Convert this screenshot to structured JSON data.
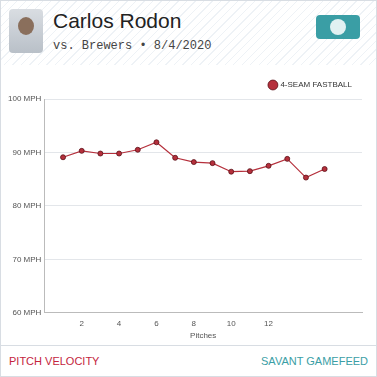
{
  "header": {
    "title": "Carlos Rodon",
    "subtitle": "vs. Brewers • 8/4/2020"
  },
  "chart_data": {
    "type": "line",
    "x": [
      1,
      2,
      3,
      4,
      5,
      6,
      7,
      8,
      9,
      10,
      11,
      12,
      13,
      14,
      15
    ],
    "series": [
      {
        "name": "4-SEAM FASTBALL",
        "color": "#b5303c",
        "marker": "circle",
        "line_style": "solid",
        "values": [
          89.1,
          90.3,
          89.8,
          89.8,
          90.5,
          91.9,
          89.0,
          88.2,
          88.0,
          86.4,
          86.5,
          87.5,
          88.8,
          85.3,
          86.9
        ]
      }
    ],
    "x_label": "Pitches",
    "xlim": [
      0,
      17
    ],
    "xticks": [
      2,
      4,
      6,
      8,
      10,
      12
    ],
    "ylim": [
      60,
      100
    ],
    "yticks": [
      {
        "value": 60,
        "label": "60 MPH"
      },
      {
        "value": 70,
        "label": "70 MPH"
      },
      {
        "value": 80,
        "label": "80 MPH"
      },
      {
        "value": 90,
        "label": "90 MPH"
      },
      {
        "value": 100,
        "label": "100 MPH"
      }
    ],
    "grid": true,
    "legend": "top-right"
  },
  "footer": {
    "left": "PITCH VELOCITY",
    "right": "SAVANT GAMEFEED"
  }
}
